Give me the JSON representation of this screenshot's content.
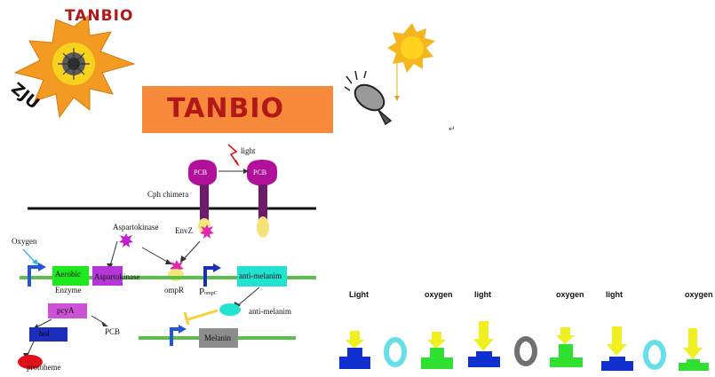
{
  "logo": {
    "title": "TANBIO",
    "side_text": "ZJU"
  },
  "banner": {
    "text": "TANBIO"
  },
  "misc": {
    "return_mark": "↵"
  },
  "diagram": {
    "light": "light",
    "pcb_left": "PCB",
    "pcb_right": "PCB",
    "cph_chimera": "Cph chimera",
    "aspartokinase_top": "Aspartokinase",
    "envz": "EnvZ",
    "oxygen": "Oxygen",
    "aerobic_enzyme": "Aerobic\nEnzyme",
    "aspartokinase_box": "Aspartokinase",
    "ompr": "ompR",
    "pompc_p": "P",
    "pompc_sub": "ompC",
    "anti_melanim_box": "anti-melanim",
    "anti_melanim_label": "anti-melanim",
    "pcya": "pcyA",
    "pcb_product": "PCB",
    "hol": "hol",
    "protoheme": "protoheme",
    "melanin": "Melanin"
  },
  "legend": {
    "labels": [
      "Light",
      "oxygen",
      "light",
      "oxygen",
      "light",
      "oxygen"
    ],
    "colors": {
      "arrow": "#f0f020",
      "blue_block": "#1030d0",
      "green_block": "#30e030",
      "cyan_ring": "#66e0e6",
      "gray_ring": "#707070"
    }
  }
}
